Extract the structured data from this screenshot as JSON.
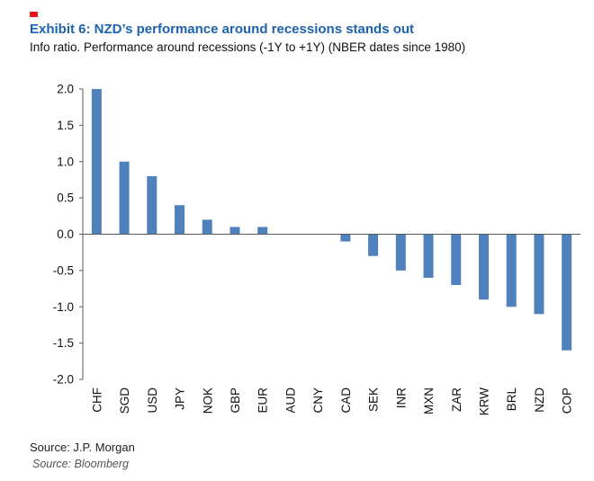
{
  "header": {
    "title": "Exhibit 6: NZD’s performance around recessions stands out",
    "subtitle": "Info ratio. Performance around recessions (-1Y to +1Y) (NBER dates since 1980)",
    "title_color": "#1d62ae"
  },
  "chart_data": {
    "type": "bar",
    "title": "Exhibit 6: NZD’s performance around recessions stands out",
    "subtitle": "Info ratio. Performance around recessions (-1Y to +1Y) (NBER dates since 1980)",
    "categories": [
      "CHF",
      "SGD",
      "USD",
      "JPY",
      "NOK",
      "GBP",
      "EUR",
      "AUD",
      "CNY",
      "CAD",
      "SEK",
      "INR",
      "MXN",
      "ZAR",
      "KRW",
      "BRL",
      "NZD",
      "COP"
    ],
    "values": [
      2.0,
      1.0,
      0.8,
      0.4,
      0.2,
      0.1,
      0.1,
      0.0,
      0.0,
      -0.1,
      -0.3,
      -0.5,
      -0.6,
      -0.7,
      -0.9,
      -1.0,
      -1.1,
      -1.6
    ],
    "xlabel": "",
    "ylabel": "",
    "ylim": [
      -2.0,
      2.0
    ],
    "yticks": [
      2.0,
      1.5,
      1.0,
      0.5,
      0.0,
      -0.5,
      -1.0,
      -1.5,
      -2.0
    ],
    "grid": false,
    "legend": false,
    "bar_color": "#4f81bd",
    "axis_color": "#595959",
    "tick_label_color": "#111111"
  },
  "footer": {
    "source1": "Source: J.P. Morgan",
    "source2": "Source: Bloomberg"
  }
}
